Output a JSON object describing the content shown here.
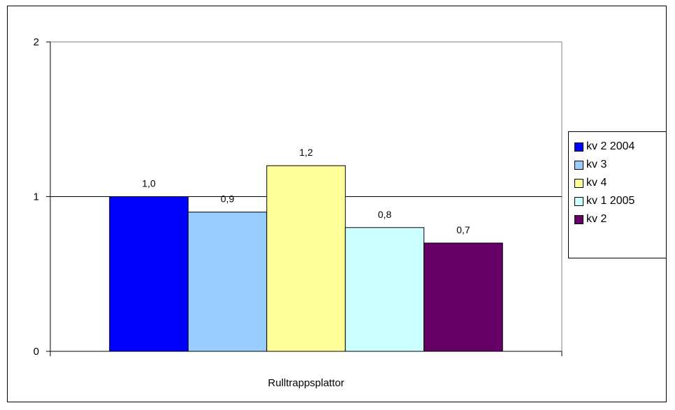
{
  "chart_data": {
    "type": "bar",
    "categories": [
      "Rulltrappsplattor"
    ],
    "series": [
      {
        "name": "kv 2 2004",
        "values": [
          1.0
        ],
        "label": "1,0",
        "color": "#0000ff"
      },
      {
        "name": "kv 3",
        "values": [
          0.9
        ],
        "label": "0,9",
        "color": "#99ccff"
      },
      {
        "name": "kv 4",
        "values": [
          1.2
        ],
        "label": "1,2",
        "color": "#ffff99"
      },
      {
        "name": "kv 1 2005",
        "values": [
          0.8
        ],
        "label": "0,8",
        "color": "#ccffff"
      },
      {
        "name": "kv 2",
        "values": [
          0.7
        ],
        "label": "0,7",
        "color": "#660066"
      }
    ],
    "ylim": [
      0,
      2
    ],
    "yticks": [
      "0",
      "1",
      "2"
    ],
    "grid": true,
    "legend_position": "right",
    "plot_background": "#ffffff"
  }
}
